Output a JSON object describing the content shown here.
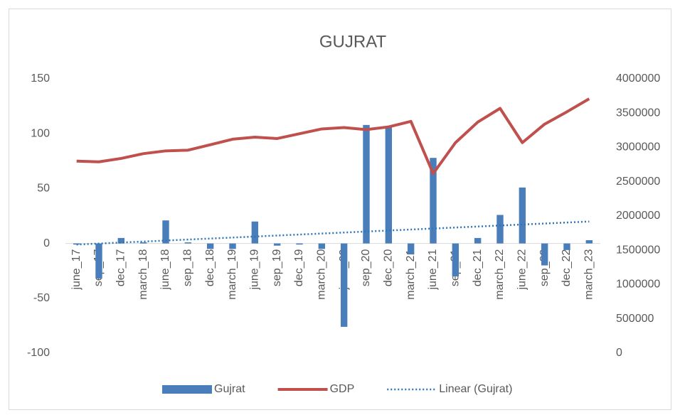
{
  "chart_data": {
    "type": "bar",
    "title": "GUJRAT",
    "categories": [
      "june_17",
      "sep_17",
      "dec_17",
      "march_18",
      "june_18",
      "sep_18",
      "dec_18",
      "march_19",
      "june_19",
      "sep_19",
      "dec_19",
      "march_20",
      "june_20",
      "sep_20",
      "dec_20",
      "march_21",
      "june_21",
      "sep_21",
      "dec_21",
      "march_22",
      "june_22",
      "sep_22",
      "dec_22",
      "march_23"
    ],
    "series": [
      {
        "name": "Gujrat",
        "type": "bar",
        "color": "#4a7ebb",
        "values": [
          -1,
          -32,
          5,
          1,
          21,
          1,
          -5,
          -5,
          20,
          -2,
          -1,
          -5,
          -76,
          108,
          106,
          -10,
          78,
          -30,
          5,
          26,
          51,
          -20,
          -6,
          3
        ]
      },
      {
        "name": "GDP",
        "type": "line",
        "axis": "y2",
        "color": "#c0504d",
        "values": [
          2800000,
          2790000,
          2840000,
          2910000,
          2950000,
          2960000,
          3040000,
          3120000,
          3150000,
          3130000,
          3200000,
          3270000,
          3290000,
          3260000,
          3300000,
          3380000,
          2620000,
          3070000,
          3370000,
          3570000,
          3070000,
          3340000,
          3520000,
          3710000
        ]
      },
      {
        "name": "Linear (Gujrat)",
        "type": "line",
        "style": "dotted",
        "color": "#2e75b6",
        "values": [
          -1,
          -0.09,
          0.83,
          1.74,
          2.65,
          3.57,
          4.48,
          5.39,
          6.3,
          7.22,
          8.13,
          9.04,
          9.96,
          10.87,
          11.78,
          12.7,
          13.61,
          14.52,
          15.43,
          16.35,
          17.26,
          18.17,
          19.09,
          20
        ]
      }
    ],
    "ylim": [
      -100,
      150
    ],
    "yticks": [
      -100,
      -50,
      0,
      50,
      100,
      150
    ],
    "y2lim": [
      0,
      4000000
    ],
    "y2ticks": [
      0,
      500000,
      1000000,
      1500000,
      2000000,
      2500000,
      3000000,
      3500000,
      4000000
    ],
    "grid": false,
    "legend": "bottom"
  }
}
